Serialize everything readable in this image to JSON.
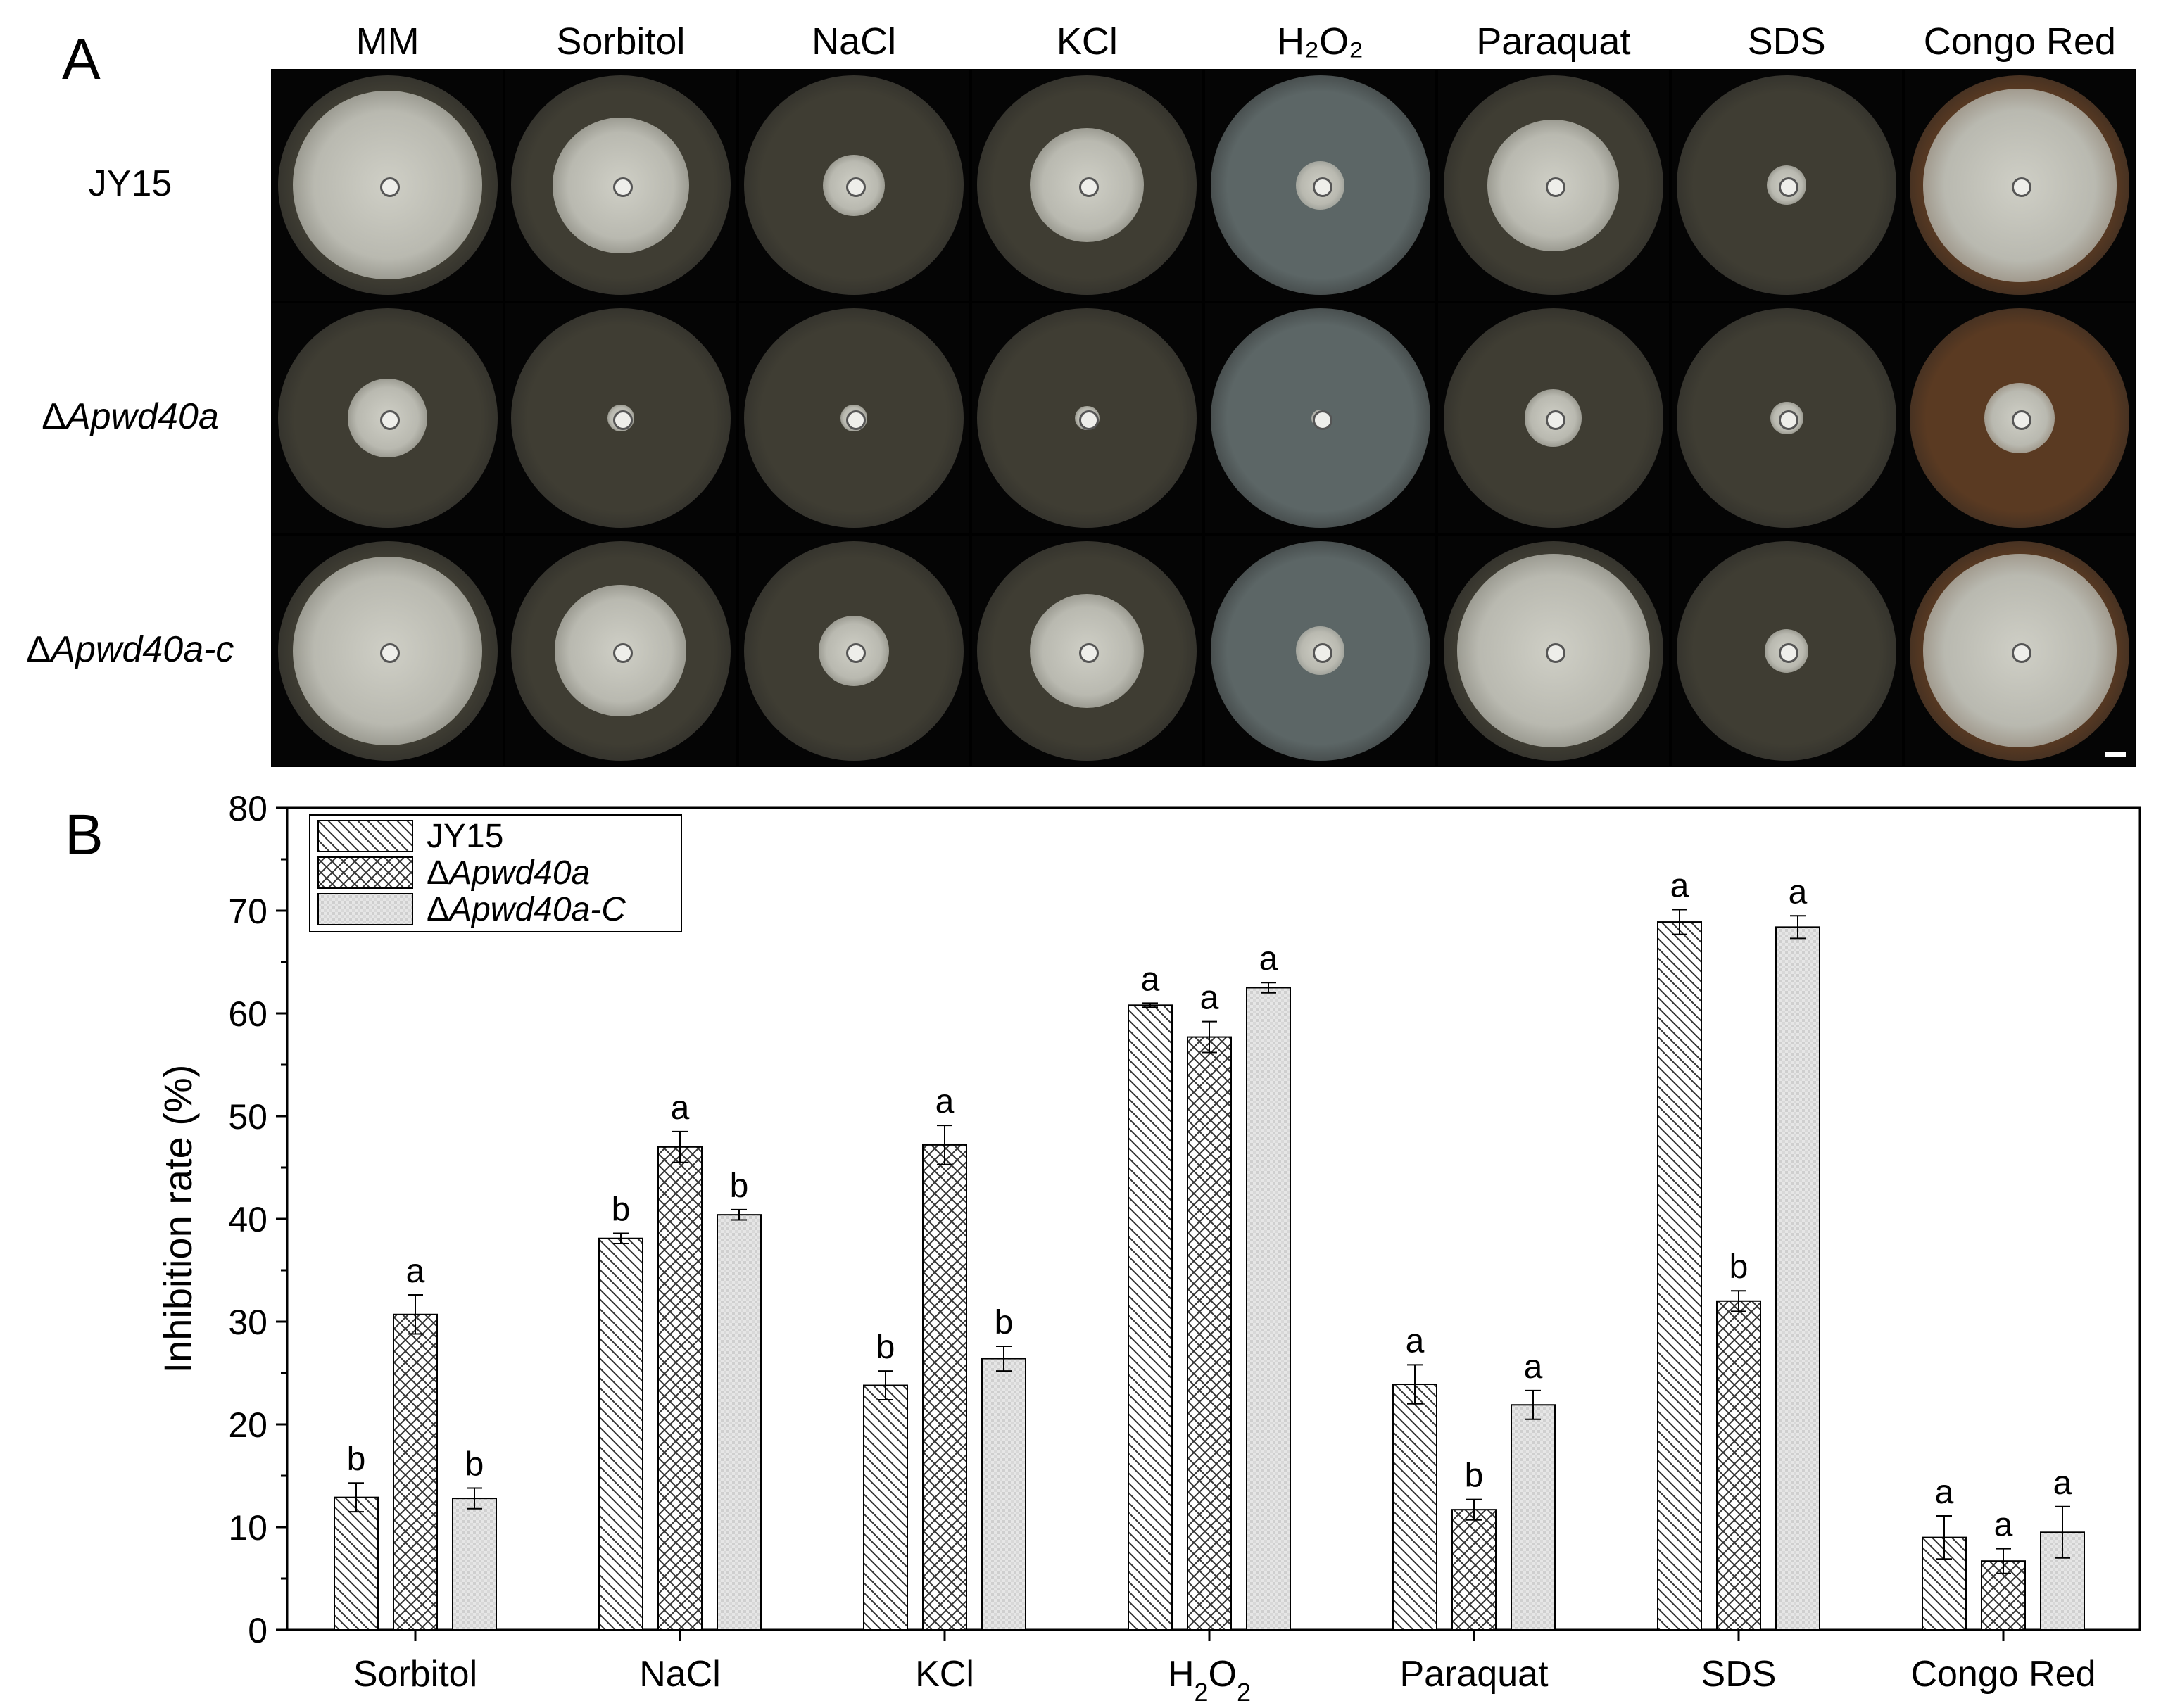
{
  "panel_a": {
    "letter": "A",
    "columns": [
      "MM",
      "Sorbitol",
      "NaCl",
      "KCl",
      "H₂O₂",
      "Paraquat",
      "SDS",
      "Congo Red"
    ],
    "rows": [
      {
        "prefix": "",
        "label": "JY15"
      },
      {
        "prefix": "Δ",
        "label": "Apwd40a"
      },
      {
        "prefix": "Δ",
        "label": "Apwd40a-c"
      }
    ],
    "colors": {
      "plate_bg": "#3f3d33",
      "congo_bg": "#5a3a22",
      "h2o2_bg": "#5c6666",
      "mycelium": "#cfcfc6"
    }
  },
  "panel_b": {
    "letter": "B"
  },
  "chart_data": {
    "type": "bar",
    "title": "",
    "xlabel": "",
    "ylabel": "Inhibition rate (%)",
    "ylim": [
      0,
      80
    ],
    "yticks": [
      0,
      10,
      20,
      30,
      40,
      50,
      60,
      70,
      80
    ],
    "categories": [
      "Sorbitol",
      "NaCl",
      "KCl",
      "H2O2",
      "Paraquat",
      "SDS",
      "Congo Red"
    ],
    "series": [
      {
        "name": "JY15",
        "legend_prefix": "",
        "legend_italic": "",
        "legend_plain": "JY15",
        "pattern": "diagonal",
        "values": [
          12.9,
          38.1,
          23.8,
          60.8,
          23.9,
          68.9,
          9.0
        ],
        "errors": [
          1.4,
          0.5,
          1.4,
          0.2,
          1.9,
          1.2,
          2.1
        ],
        "letters": [
          "b",
          "b",
          "b",
          "a",
          "a",
          "a",
          "a"
        ]
      },
      {
        "name": "ΔApwd40a",
        "legend_prefix": "Δ",
        "legend_italic": "Apwd40a",
        "legend_plain": "",
        "pattern": "crosshatch",
        "values": [
          30.7,
          47.0,
          47.2,
          57.7,
          11.7,
          32.0,
          6.7
        ],
        "errors": [
          1.9,
          1.5,
          1.9,
          1.5,
          1.0,
          1.0,
          1.2
        ],
        "letters": [
          "a",
          "a",
          "a",
          "a",
          "b",
          "b",
          "a"
        ]
      },
      {
        "name": "ΔApwd40a-C",
        "legend_prefix": "Δ",
        "legend_italic": "Apwd40a-C",
        "legend_plain": "",
        "pattern": "dotted",
        "values": [
          12.8,
          40.4,
          26.4,
          62.5,
          21.9,
          68.4,
          9.5
        ],
        "errors": [
          1.0,
          0.5,
          1.2,
          0.5,
          1.4,
          1.1,
          2.5
        ],
        "letters": [
          "b",
          "b",
          "b",
          "a",
          "a",
          "a",
          "a"
        ]
      }
    ]
  }
}
